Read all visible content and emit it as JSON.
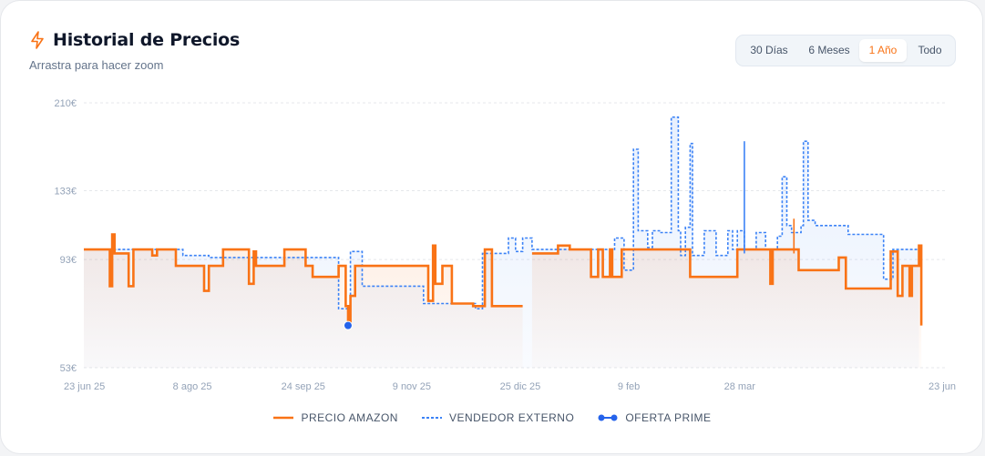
{
  "header": {
    "title": "Historial de Precios",
    "subtitle": "Arrastra para hacer zoom",
    "icon": "bolt-icon"
  },
  "range_selector": {
    "options": [
      "30 Días",
      "6 Meses",
      "1 Año",
      "Todo"
    ],
    "active": "1 Año"
  },
  "colors": {
    "amazon": "#f97316",
    "external": "#3b82f6",
    "prime": "#2563eb",
    "grid": "#e5e7eb",
    "tick": "#94a3b8"
  },
  "chart_data": {
    "type": "line",
    "xlim": [
      "2025-06-23",
      "2026-06-23"
    ],
    "ylim": [
      53,
      210
    ],
    "yticks": [
      {
        "value": 210,
        "label": "210€"
      },
      {
        "value": 133,
        "label": "133€"
      },
      {
        "value": 93,
        "label": "93€"
      },
      {
        "value": 53,
        "label": "53€"
      }
    ],
    "xticks": [
      {
        "date": "2025-06-23",
        "label": "23 jun 25"
      },
      {
        "date": "2025-08-08",
        "label": "8 ago 25"
      },
      {
        "date": "2025-09-24",
        "label": "24 sep 25"
      },
      {
        "date": "2025-11-09",
        "label": "9 nov 25"
      },
      {
        "date": "2025-12-25",
        "label": "25 dic 25"
      },
      {
        "date": "2026-02-09",
        "label": "9 feb"
      },
      {
        "date": "2026-03-28",
        "label": "28 mar"
      },
      {
        "date": "2026-06-23",
        "label": "23 jun"
      }
    ],
    "grid": true,
    "legend_position": "bottom",
    "series": [
      {
        "name": "PRECIO AMAZON",
        "style": "solid",
        "points": [
          [
            "2025-06-23",
            98
          ],
          [
            "2025-07-04",
            98
          ],
          [
            "2025-07-04",
            81
          ],
          [
            "2025-07-05",
            81
          ],
          [
            "2025-07-05",
            106
          ],
          [
            "2025-07-06",
            106
          ],
          [
            "2025-07-06",
            96
          ],
          [
            "2025-07-12",
            96
          ],
          [
            "2025-07-12",
            81
          ],
          [
            "2025-07-14",
            81
          ],
          [
            "2025-07-14",
            98
          ],
          [
            "2025-07-22",
            98
          ],
          [
            "2025-07-22",
            95
          ],
          [
            "2025-07-24",
            95
          ],
          [
            "2025-07-24",
            98
          ],
          [
            "2025-08-01",
            98
          ],
          [
            "2025-08-01",
            90
          ],
          [
            "2025-08-13",
            90
          ],
          [
            "2025-08-13",
            79
          ],
          [
            "2025-08-15",
            79
          ],
          [
            "2025-08-15",
            90
          ],
          [
            "2025-08-21",
            90
          ],
          [
            "2025-08-21",
            98
          ],
          [
            "2025-09-01",
            98
          ],
          [
            "2025-09-01",
            82
          ],
          [
            "2025-09-03",
            82
          ],
          [
            "2025-09-03",
            97
          ],
          [
            "2025-09-04",
            97
          ],
          [
            "2025-09-04",
            90
          ],
          [
            "2025-09-16",
            90
          ],
          [
            "2025-09-16",
            98
          ],
          [
            "2025-09-25",
            98
          ],
          [
            "2025-09-25",
            90
          ],
          [
            "2025-09-28",
            90
          ],
          [
            "2025-09-28",
            85
          ],
          [
            "2025-10-09",
            85
          ],
          [
            "2025-10-09",
            90
          ],
          [
            "2025-10-12",
            90
          ],
          [
            "2025-10-12",
            73
          ],
          [
            "2025-10-13",
            73
          ],
          [
            "2025-10-13",
            67
          ],
          [
            "2025-10-14",
            67
          ],
          [
            "2025-10-14",
            77
          ],
          [
            "2025-10-16",
            77
          ],
          [
            "2025-10-16",
            90
          ],
          [
            "2025-11-16",
            90
          ],
          [
            "2025-11-16",
            75
          ],
          [
            "2025-11-18",
            75
          ],
          [
            "2025-11-18",
            100
          ],
          [
            "2025-11-19",
            100
          ],
          [
            "2025-11-19",
            82
          ],
          [
            "2025-11-22",
            82
          ],
          [
            "2025-11-22",
            90
          ],
          [
            "2025-11-26",
            90
          ],
          [
            "2025-11-26",
            74
          ],
          [
            "2025-12-05",
            74
          ],
          [
            "2025-12-05",
            73
          ],
          [
            "2025-12-10",
            73
          ],
          [
            "2025-12-10",
            98
          ],
          [
            "2025-12-13",
            98
          ],
          [
            "2025-12-13",
            73
          ],
          [
            "2025-12-26",
            73
          ]
        ]
      },
      {
        "name": "PRECIO AMAZON",
        "style": "solid",
        "points": [
          [
            "2025-12-30",
            96
          ],
          [
            "2026-01-10",
            96
          ],
          [
            "2026-01-10",
            100
          ],
          [
            "2026-01-15",
            100
          ],
          [
            "2026-01-15",
            98
          ],
          [
            "2026-01-24",
            98
          ],
          [
            "2026-01-24",
            85
          ],
          [
            "2026-01-27",
            85
          ],
          [
            "2026-01-27",
            98
          ],
          [
            "2026-01-29",
            98
          ],
          [
            "2026-01-29",
            85
          ],
          [
            "2026-02-01",
            85
          ],
          [
            "2026-02-01",
            98
          ],
          [
            "2026-02-02",
            98
          ],
          [
            "2026-02-02",
            85
          ],
          [
            "2026-02-06",
            85
          ],
          [
            "2026-02-06",
            98
          ],
          [
            "2026-03-07",
            98
          ],
          [
            "2026-03-07",
            85
          ],
          [
            "2026-03-27",
            85
          ],
          [
            "2026-03-27",
            98
          ],
          [
            "2026-04-10",
            98
          ],
          [
            "2026-04-10",
            82
          ],
          [
            "2026-04-11",
            82
          ],
          [
            "2026-04-11",
            98
          ],
          [
            "2026-04-22",
            98
          ],
          [
            "2026-04-22",
            88
          ],
          [
            "2026-05-09",
            88
          ],
          [
            "2026-05-09",
            94
          ],
          [
            "2026-05-12",
            94
          ],
          [
            "2026-05-12",
            80
          ],
          [
            "2026-05-31",
            80
          ],
          [
            "2026-05-31",
            97
          ],
          [
            "2026-06-03",
            97
          ],
          [
            "2026-06-03",
            77
          ],
          [
            "2026-06-05",
            77
          ],
          [
            "2026-06-05",
            90
          ],
          [
            "2026-06-08",
            90
          ],
          [
            "2026-06-08",
            77
          ],
          [
            "2026-06-09",
            77
          ],
          [
            "2026-06-09",
            90
          ],
          [
            "2026-06-12",
            90
          ],
          [
            "2026-06-12",
            100
          ],
          [
            "2026-06-13",
            100
          ],
          [
            "2026-06-13",
            66
          ]
        ]
      },
      {
        "name": "VENDEDOR EXTERNO",
        "style": "dashed",
        "points": [
          [
            "2025-06-23",
            98
          ],
          [
            "2025-07-04",
            98
          ],
          [
            "2025-07-04",
            94
          ],
          [
            "2025-07-05",
            94
          ],
          [
            "2025-07-05",
            98
          ],
          [
            "2025-08-04",
            98
          ],
          [
            "2025-08-04",
            95
          ],
          [
            "2025-08-15",
            95
          ],
          [
            "2025-08-15",
            94
          ],
          [
            "2025-10-09",
            94
          ],
          [
            "2025-10-09",
            72
          ],
          [
            "2025-10-14",
            72
          ],
          [
            "2025-10-14",
            97
          ],
          [
            "2025-10-19",
            97
          ],
          [
            "2025-10-19",
            81
          ],
          [
            "2025-11-14",
            81
          ],
          [
            "2025-11-14",
            74
          ],
          [
            "2025-12-06",
            74
          ],
          [
            "2025-12-06",
            72
          ],
          [
            "2025-12-09",
            72
          ],
          [
            "2025-12-09",
            96
          ],
          [
            "2025-12-20",
            96
          ],
          [
            "2025-12-20",
            104
          ],
          [
            "2025-12-23",
            104
          ],
          [
            "2025-12-23",
            97
          ],
          [
            "2025-12-26",
            97
          ],
          [
            "2025-12-26",
            104
          ],
          [
            "2025-12-30",
            104
          ],
          [
            "2025-12-30",
            98
          ],
          [
            "2026-02-03",
            98
          ],
          [
            "2026-02-03",
            104
          ],
          [
            "2026-02-07",
            104
          ],
          [
            "2026-02-07",
            88
          ],
          [
            "2026-02-11",
            88
          ],
          [
            "2026-02-11",
            165
          ],
          [
            "2026-02-13",
            165
          ],
          [
            "2026-02-13",
            108
          ],
          [
            "2026-02-17",
            108
          ],
          [
            "2026-02-17",
            99
          ],
          [
            "2026-02-19",
            99
          ],
          [
            "2026-02-19",
            108
          ],
          [
            "2026-02-22",
            108
          ],
          [
            "2026-02-22",
            107
          ],
          [
            "2026-02-27",
            107
          ],
          [
            "2026-02-27",
            195
          ],
          [
            "2026-02-28",
            195
          ],
          [
            "2026-03-02",
            195
          ],
          [
            "2026-03-02",
            108
          ],
          [
            "2026-03-03",
            108
          ],
          [
            "2026-03-03",
            95
          ],
          [
            "2026-03-05",
            95
          ],
          [
            "2026-03-05",
            110
          ],
          [
            "2026-03-07",
            110
          ],
          [
            "2026-03-07",
            170
          ],
          [
            "2026-03-08",
            170
          ],
          [
            "2026-03-08",
            95
          ],
          [
            "2026-03-13",
            95
          ],
          [
            "2026-03-13",
            108
          ],
          [
            "2026-03-18",
            108
          ],
          [
            "2026-03-18",
            95
          ],
          [
            "2026-03-23",
            95
          ],
          [
            "2026-03-23",
            108
          ],
          [
            "2026-03-25",
            108
          ],
          [
            "2026-03-25",
            98
          ],
          [
            "2026-03-27",
            98
          ],
          [
            "2026-03-27",
            108
          ],
          [
            "2026-03-30",
            108
          ],
          [
            "2026-03-30",
            98
          ],
          [
            "2026-04-04",
            98
          ],
          [
            "2026-04-04",
            107
          ],
          [
            "2026-04-08",
            107
          ],
          [
            "2026-04-08",
            98
          ],
          [
            "2026-04-13",
            98
          ],
          [
            "2026-04-13",
            105
          ],
          [
            "2026-04-15",
            105
          ],
          [
            "2026-04-15",
            143
          ],
          [
            "2026-04-17",
            143
          ],
          [
            "2026-04-17",
            111
          ],
          [
            "2026-04-19",
            111
          ],
          [
            "2026-04-19",
            107
          ],
          [
            "2026-04-23",
            107
          ],
          [
            "2026-04-23",
            111
          ],
          [
            "2026-04-24",
            111
          ],
          [
            "2026-04-24",
            172
          ],
          [
            "2026-04-26",
            172
          ],
          [
            "2026-04-26",
            114
          ],
          [
            "2026-04-29",
            114
          ],
          [
            "2026-04-29",
            111
          ],
          [
            "2026-05-13",
            111
          ],
          [
            "2026-05-13",
            106
          ],
          [
            "2026-05-28",
            106
          ],
          [
            "2026-05-28",
            84
          ],
          [
            "2026-06-01",
            84
          ],
          [
            "2026-06-01",
            98
          ],
          [
            "2026-06-12",
            98
          ]
        ]
      },
      {
        "name": "OFERTA PRIME",
        "style": "point",
        "points": [
          [
            "2025-10-13",
            66
          ]
        ]
      }
    ],
    "spikes": [
      {
        "date": "2026-03-30",
        "value": 172,
        "color": "#3b82f6"
      },
      {
        "date": "2026-04-20",
        "value": 115,
        "color": "#f97316"
      }
    ]
  }
}
